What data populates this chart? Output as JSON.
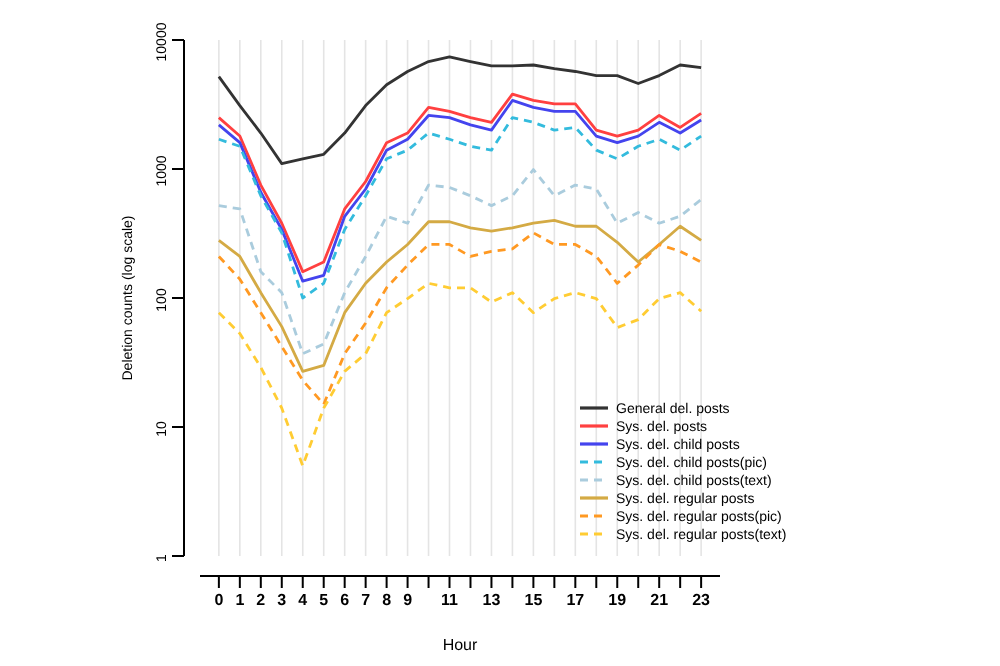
{
  "chart_data": {
    "type": "line",
    "xlabel": "Hour",
    "ylabel": "Deletion counts (log scale)",
    "log": "y",
    "grid": "x",
    "legend": "bottom right",
    "marker": "none",
    "x": [
      0,
      1,
      2,
      3,
      4,
      5,
      6,
      7,
      8,
      9,
      10,
      11,
      12,
      13,
      14,
      15,
      16,
      17,
      18,
      19,
      20,
      21,
      22,
      23
    ],
    "xlim": [
      -0.9,
      23.9
    ],
    "xticks": [
      0,
      1,
      2,
      3,
      4,
      5,
      6,
      7,
      8,
      9,
      {
        "value": 10,
        "label": null
      },
      11,
      {
        "value": 12,
        "label": null
      },
      13,
      {
        "value": 14,
        "label": null
      },
      15,
      {
        "value": 16,
        "label": null
      },
      17,
      {
        "value": 18,
        "label": null
      },
      19,
      {
        "value": 20,
        "label": null
      },
      21,
      {
        "value": 22,
        "label": null
      },
      23
    ],
    "ylim": [
      1,
      10000
    ],
    "yticks": [
      1,
      10,
      100,
      1000,
      10000
    ],
    "series": [
      {
        "name": "General del. posts",
        "color": "#333333",
        "line_style": "solid",
        "values": [
          5200,
          3100,
          1900,
          1100,
          1200,
          1300,
          1900,
          3100,
          4500,
          5700,
          6800,
          7400,
          6800,
          6300,
          6300,
          6400,
          6000,
          5700,
          5300,
          5300,
          4600,
          5300,
          6400,
          6100
        ]
      },
      {
        "name": "Sys. del. posts",
        "color": "#ff4040",
        "line_style": "solid",
        "values": [
          2500,
          1800,
          750,
          380,
          160,
          190,
          490,
          800,
          1600,
          1900,
          3000,
          2800,
          2500,
          2300,
          3800,
          3400,
          3200,
          3200,
          2000,
          1800,
          2000,
          2600,
          2100,
          2700
        ]
      },
      {
        "name": "Sys. del. child posts",
        "color": "#4444ee",
        "line_style": "solid",
        "values": [
          2200,
          1600,
          660,
          340,
          135,
          150,
          430,
          700,
          1400,
          1700,
          2600,
          2500,
          2200,
          2000,
          3400,
          3000,
          2800,
          2800,
          1800,
          1600,
          1800,
          2300,
          1900,
          2400
        ]
      },
      {
        "name": "Sys. del. child posts(pic)",
        "color": "#33bbdd",
        "line_style": "dashed",
        "values": [
          1700,
          1500,
          620,
          320,
          100,
          130,
          340,
          620,
          1200,
          1400,
          1900,
          1700,
          1500,
          1400,
          2500,
          2300,
          2000,
          2100,
          1400,
          1200,
          1500,
          1700,
          1400,
          1800
        ]
      },
      {
        "name": "Sys. del. child posts(text)",
        "color": "#aaccdd",
        "line_style": "dashed",
        "values": [
          520,
          490,
          160,
          110,
          37,
          44,
          110,
          210,
          430,
          380,
          750,
          720,
          620,
          520,
          620,
          990,
          620,
          750,
          700,
          380,
          460,
          380,
          430,
          580
        ]
      },
      {
        "name": "Sys. del. regular posts",
        "color": "#d4aa44",
        "line_style": "solid",
        "values": [
          280,
          210,
          110,
          60,
          27,
          30,
          77,
          130,
          190,
          260,
          390,
          390,
          350,
          330,
          350,
          380,
          400,
          360,
          360,
          270,
          190,
          260,
          360,
          280
        ]
      },
      {
        "name": "Sys. del. regular posts(pic)",
        "color": "#ff9922",
        "line_style": "dashed",
        "values": [
          210,
          140,
          77,
          42,
          23,
          15,
          37,
          64,
          120,
          180,
          260,
          260,
          210,
          230,
          240,
          320,
          260,
          260,
          210,
          130,
          180,
          260,
          230,
          190
        ]
      },
      {
        "name": "Sys. del. regular posts(text)",
        "color": "#ffcc33",
        "line_style": "dashed",
        "values": [
          77,
          53,
          29,
          14,
          5,
          14,
          27,
          37,
          77,
          99,
          130,
          120,
          120,
          93,
          110,
          77,
          99,
          110,
          99,
          59,
          68,
          99,
          110,
          79
        ]
      }
    ]
  }
}
